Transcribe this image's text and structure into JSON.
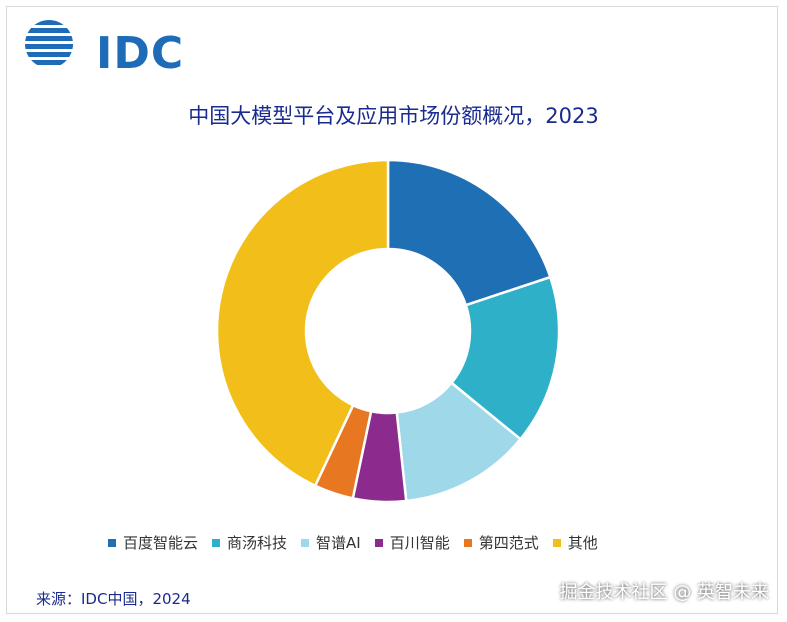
{
  "header": {
    "logo_text": "IDC"
  },
  "chart_data": {
    "type": "pie",
    "style": "donut",
    "title": "中国大模型平台及应用市场份额概况，2023",
    "categories": [
      "百度智能云",
      "商汤科技",
      "智谱AI",
      "百川智能",
      "第四范式",
      "其他"
    ],
    "values": [
      19.9,
      16.0,
      12.4,
      5.0,
      3.7,
      43.0
    ],
    "colors": [
      "#1f6fb5",
      "#2fb0c9",
      "#9fd8e8",
      "#8b2b8d",
      "#e87722",
      "#f2be1a"
    ],
    "legend_position": "bottom"
  },
  "footer": {
    "source": "来源：IDC中国，2024",
    "watermark": "掘金技术社区 @ 英智未来"
  }
}
